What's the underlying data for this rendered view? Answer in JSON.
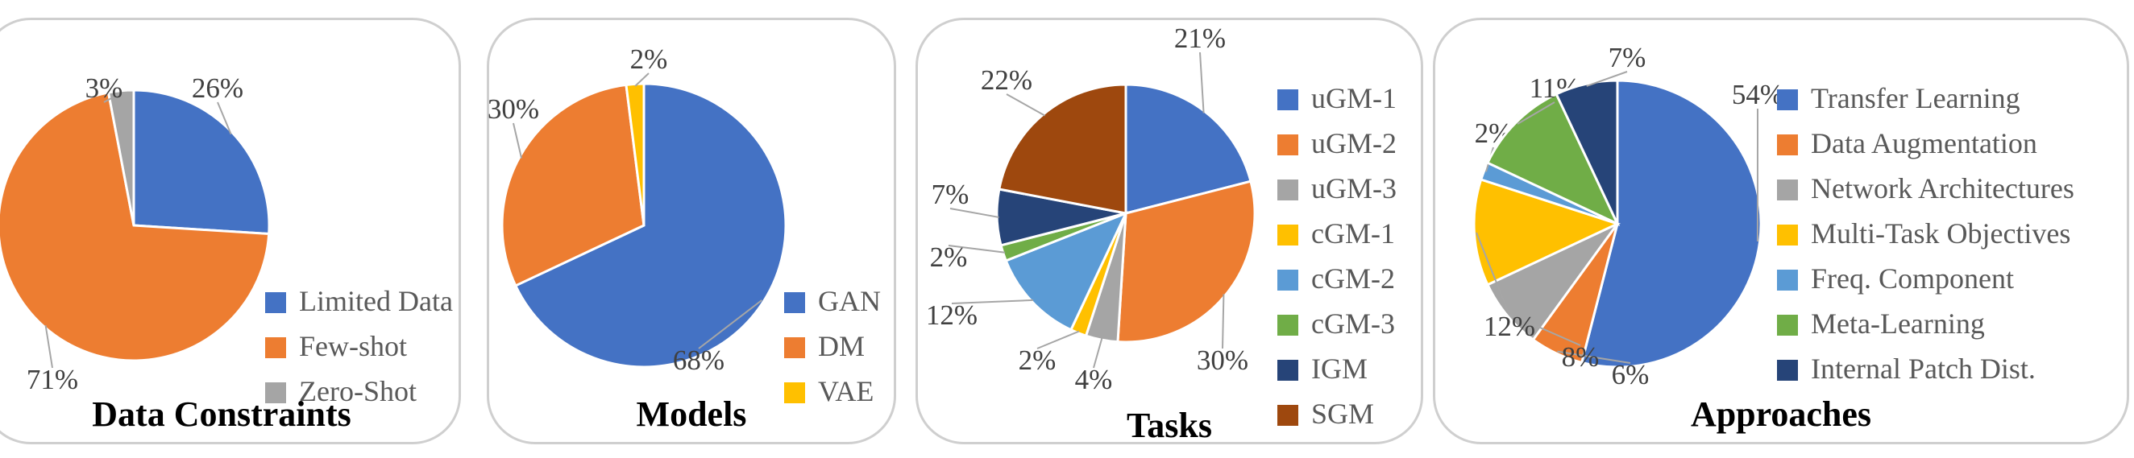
{
  "colors": {
    "blue": "#4472C4",
    "orange": "#ED7D31",
    "gray": "#A5A5A5",
    "yellow": "#FFC000",
    "lightblue": "#5B9BD5",
    "green": "#70AD47",
    "navy": "#264478",
    "brown": "#9E480E"
  },
  "chart_data": [
    {
      "type": "pie",
      "title": "Data Constraints",
      "labels": [
        "Limited Data",
        "Few-shot",
        "Zero-Shot"
      ],
      "values": [
        26,
        71,
        3
      ],
      "value_labels": [
        "26%",
        "71%",
        "3%"
      ],
      "colors": [
        "#4472C4",
        "#ED7D31",
        "#A5A5A5"
      ],
      "legend_position": "bottom-right"
    },
    {
      "type": "pie",
      "title": "Models",
      "labels": [
        "GAN",
        "DM",
        "VAE"
      ],
      "values": [
        68,
        30,
        2
      ],
      "value_labels": [
        "68%",
        "30%",
        "2%"
      ],
      "colors": [
        "#4472C4",
        "#ED7D31",
        "#FFC000"
      ],
      "legend_position": "bottom-right"
    },
    {
      "type": "pie",
      "title": "Tasks",
      "labels": [
        "uGM-1",
        "uGM-2",
        "uGM-3",
        "cGM-1",
        "cGM-2",
        "cGM-3",
        "IGM",
        "SGM"
      ],
      "values": [
        21,
        30,
        4,
        2,
        12,
        2,
        7,
        22
      ],
      "value_labels": [
        "21%",
        "30%",
        "4%",
        "2%",
        "12%",
        "2%",
        "7%",
        "22%"
      ],
      "colors": [
        "#4472C4",
        "#ED7D31",
        "#A5A5A5",
        "#FFC000",
        "#5B9BD5",
        "#70AD47",
        "#264478",
        "#9E480E"
      ],
      "legend_position": "right"
    },
    {
      "type": "pie",
      "title": "Approaches",
      "labels": [
        "Transfer Learning",
        "Data Augmentation",
        "Network Architectures",
        "Multi-Task Objectives",
        "Freq. Component",
        "Meta-Learning",
        "Internal Patch Dist."
      ],
      "values": [
        54,
        6,
        8,
        12,
        2,
        11,
        7
      ],
      "value_labels": [
        "54%",
        "6%",
        "8%",
        "12%",
        "2%",
        "11%",
        "7%"
      ],
      "colors": [
        "#4472C4",
        "#ED7D31",
        "#A5A5A5",
        "#FFC000",
        "#5B9BD5",
        "#70AD47",
        "#264478"
      ],
      "legend_position": "right"
    }
  ]
}
